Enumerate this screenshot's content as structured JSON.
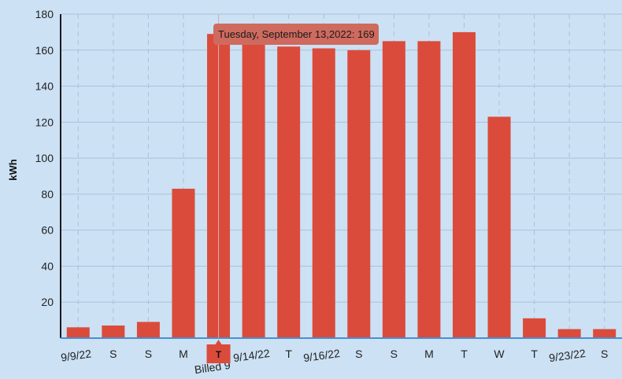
{
  "colors": {
    "background": "#cce1f4",
    "bar": "#db4b3b",
    "tooltip_bg": "#cf6a5e",
    "axis": "#1b1b1b",
    "baseline": "#4a8fd0",
    "grid": "#a9c2da"
  },
  "chart_data": {
    "type": "bar",
    "title": "",
    "xlabel": "",
    "ylabel": "kWh",
    "ylim": [
      0,
      180
    ],
    "yticks": [
      20,
      40,
      60,
      80,
      100,
      120,
      140,
      160,
      180
    ],
    "grid": true,
    "categories": [
      "9/9/22",
      "S",
      "S",
      "M",
      "T",
      "9/14/22",
      "T",
      "9/16/22",
      "S",
      "S",
      "M",
      "T",
      "W",
      "T",
      "9/23/22",
      "S"
    ],
    "values": [
      6,
      7,
      9,
      83,
      169,
      165,
      162,
      161,
      160,
      165,
      165,
      170,
      123,
      11,
      5,
      5
    ],
    "tooltip": {
      "index": 4,
      "text": "Tuesday, September 13,2022: 169"
    },
    "marker": {
      "index": 4,
      "label": "T",
      "note": "Billed 9"
    }
  }
}
